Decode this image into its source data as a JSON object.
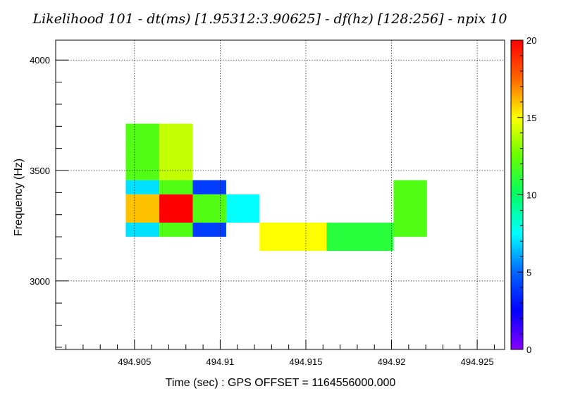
{
  "chart_data": {
    "type": "heatmap",
    "title": "Likelihood 101 - dt(ms) [1.95312:3.90625] - df(hz) [128:256] - npix 10",
    "xlabel": "Time (sec) : GPS OFFSET = 1164556000.000",
    "ylabel": "Frequency (Hz)",
    "xlim": [
      494.9004,
      494.9266
    ],
    "ylim": [
      2690,
      4090
    ],
    "x_ticks": [
      494.905,
      494.91,
      494.915,
      494.92,
      494.925
    ],
    "x_tick_labels": [
      "494.905",
      "494.91",
      "494.915",
      "494.92",
      "494.925"
    ],
    "y_ticks": [
      3000,
      3500,
      4000
    ],
    "y_tick_labels": [
      "3000",
      "3500",
      "4000"
    ],
    "grid": true,
    "colorbar": {
      "min": 0,
      "max": 20,
      "ticks": [
        0,
        5,
        10,
        15,
        20
      ],
      "tick_labels": [
        "0",
        "5",
        "10",
        "15",
        "20"
      ]
    },
    "cells": [
      {
        "x0": 494.90449,
        "x1": 494.90645,
        "y0": 3456,
        "y1": 3712,
        "value": 12
      },
      {
        "x0": 494.90645,
        "x1": 494.9084,
        "y0": 3456,
        "y1": 3712,
        "value": 14
      },
      {
        "x0": 494.90449,
        "x1": 494.90645,
        "y0": 3392,
        "y1": 3456,
        "value": 7
      },
      {
        "x0": 494.90645,
        "x1": 494.9084,
        "y0": 3392,
        "y1": 3456,
        "value": 12
      },
      {
        "x0": 494.9084,
        "x1": 494.91035,
        "y0": 3392,
        "y1": 3456,
        "value": 4
      },
      {
        "x0": 494.90449,
        "x1": 494.90645,
        "y0": 3264,
        "y1": 3392,
        "value": 16
      },
      {
        "x0": 494.90645,
        "x1": 494.9084,
        "y0": 3264,
        "y1": 3392,
        "value": 20
      },
      {
        "x0": 494.9084,
        "x1": 494.91035,
        "y0": 3264,
        "y1": 3392,
        "value": 12
      },
      {
        "x0": 494.91035,
        "x1": 494.9123,
        "y0": 3264,
        "y1": 3392,
        "value": 7.5
      },
      {
        "x0": 494.90449,
        "x1": 494.90645,
        "y0": 3200,
        "y1": 3264,
        "value": 7
      },
      {
        "x0": 494.90645,
        "x1": 494.9084,
        "y0": 3200,
        "y1": 3264,
        "value": 12
      },
      {
        "x0": 494.9084,
        "x1": 494.91035,
        "y0": 3200,
        "y1": 3264,
        "value": 4
      },
      {
        "x0": 494.9123,
        "x1": 494.91621,
        "y0": 3136,
        "y1": 3264,
        "value": 15
      },
      {
        "x0": 494.91621,
        "x1": 494.92012,
        "y0": 3136,
        "y1": 3264,
        "value": 11
      },
      {
        "x0": 494.92012,
        "x1": 494.92207,
        "y0": 3200,
        "y1": 3456,
        "value": 12
      }
    ]
  },
  "colors": {
    "palette_stops": [
      "#8800ff",
      "#0000ff",
      "#0066ff",
      "#00ffff",
      "#00ff66",
      "#66ff00",
      "#ffff00",
      "#ff6600",
      "#ff0000"
    ]
  }
}
